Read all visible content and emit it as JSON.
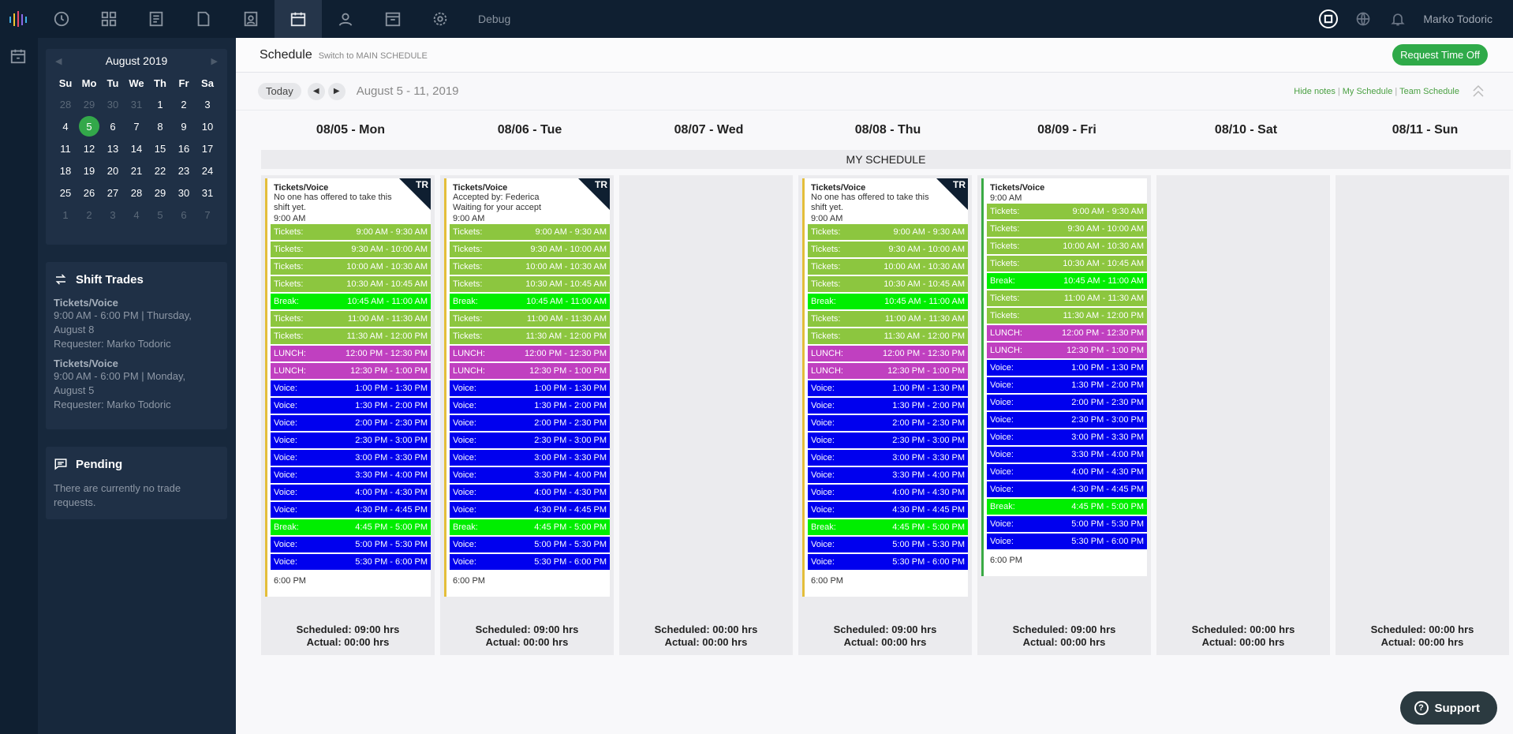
{
  "topbar": {
    "debug_label": "Debug",
    "username": "Marko Todoric",
    "nav_icons": [
      "dashboard-icon",
      "widgets-icon",
      "reports-icon",
      "files-icon",
      "contact-card-icon",
      "schedule-icon",
      "agents-icon",
      "archive-icon",
      "settings-icon"
    ],
    "active_icon": "schedule-icon"
  },
  "calendar": {
    "month_label": "August 2019",
    "weekdays": [
      "Su",
      "Mo",
      "Tu",
      "We",
      "Th",
      "Fr",
      "Sa"
    ],
    "days": [
      {
        "d": "28",
        "muted": true
      },
      {
        "d": "29",
        "muted": true
      },
      {
        "d": "30",
        "muted": true
      },
      {
        "d": "31",
        "muted": true
      },
      {
        "d": "1"
      },
      {
        "d": "2"
      },
      {
        "d": "3"
      },
      {
        "d": "4"
      },
      {
        "d": "5",
        "selected": true
      },
      {
        "d": "6"
      },
      {
        "d": "7"
      },
      {
        "d": "8"
      },
      {
        "d": "9"
      },
      {
        "d": "10"
      },
      {
        "d": "11"
      },
      {
        "d": "12"
      },
      {
        "d": "13"
      },
      {
        "d": "14"
      },
      {
        "d": "15"
      },
      {
        "d": "16"
      },
      {
        "d": "17"
      },
      {
        "d": "18"
      },
      {
        "d": "19"
      },
      {
        "d": "20"
      },
      {
        "d": "21"
      },
      {
        "d": "22"
      },
      {
        "d": "23"
      },
      {
        "d": "24"
      },
      {
        "d": "25"
      },
      {
        "d": "26"
      },
      {
        "d": "27"
      },
      {
        "d": "28"
      },
      {
        "d": "29"
      },
      {
        "d": "30"
      },
      {
        "d": "31"
      },
      {
        "d": "1",
        "muted": true
      },
      {
        "d": "2",
        "muted": true
      },
      {
        "d": "3",
        "muted": true
      },
      {
        "d": "4",
        "muted": true
      },
      {
        "d": "5",
        "muted": true
      },
      {
        "d": "6",
        "muted": true
      },
      {
        "d": "7",
        "muted": true
      }
    ]
  },
  "shift_trades": {
    "title": "Shift Trades",
    "items": [
      {
        "title": "Tickets/Voice",
        "line1": "9:00 AM - 6:00 PM | Thursday, August 8",
        "line2": "Requester: Marko Todoric"
      },
      {
        "title": "Tickets/Voice",
        "line1": "9:00 AM - 6:00 PM | Monday, August 5",
        "line2": "Requester: Marko Todoric"
      }
    ]
  },
  "pending": {
    "title": "Pending",
    "text": "There are currently no trade requests."
  },
  "schedule": {
    "title": "Schedule",
    "switch_link": "Switch to MAIN SCHEDULE",
    "request_button": "Request Time Off",
    "today_button": "Today",
    "range_label": "August 5 - 11, 2019",
    "links": {
      "hide_notes": "Hide notes",
      "my_schedule": "My Schedule",
      "team_schedule": "Team Schedule"
    },
    "section_label": "MY SCHEDULE",
    "colors": {
      "Tickets": "#8cc63f",
      "Break": "#00ee00",
      "LUNCH": "#c040c0",
      "Voice": "#0000ee"
    },
    "days": [
      {
        "header": "08/05 - Mon",
        "scheduled": "Scheduled: 09:00 hrs",
        "actual": "Actual: 00:00 hrs",
        "card": {
          "badge": "TR",
          "title": "Tickets/Voice",
          "notes": [
            "No one has offered to take this shift yet."
          ],
          "start": "9:00 AM",
          "end": "6:00 PM",
          "accent": "yellow",
          "blocks": [
            [
              "Tickets:",
              "9:00 AM - 9:30 AM"
            ],
            [
              "Tickets:",
              "9:30 AM - 10:00 AM"
            ],
            [
              "Tickets:",
              "10:00 AM - 10:30 AM"
            ],
            [
              "Tickets:",
              "10:30 AM - 10:45 AM"
            ],
            [
              "Break:",
              "10:45 AM - 11:00 AM"
            ],
            [
              "Tickets:",
              "11:00 AM - 11:30 AM"
            ],
            [
              "Tickets:",
              "11:30 AM - 12:00 PM"
            ],
            [
              "LUNCH:",
              "12:00 PM - 12:30 PM"
            ],
            [
              "LUNCH:",
              "12:30 PM - 1:00 PM"
            ],
            [
              "Voice:",
              "1:00 PM - 1:30 PM"
            ],
            [
              "Voice:",
              "1:30 PM - 2:00 PM"
            ],
            [
              "Voice:",
              "2:00 PM - 2:30 PM"
            ],
            [
              "Voice:",
              "2:30 PM - 3:00 PM"
            ],
            [
              "Voice:",
              "3:00 PM - 3:30 PM"
            ],
            [
              "Voice:",
              "3:30 PM - 4:00 PM"
            ],
            [
              "Voice:",
              "4:00 PM - 4:30 PM"
            ],
            [
              "Voice:",
              "4:30 PM - 4:45 PM"
            ],
            [
              "Break:",
              "4:45 PM - 5:00 PM"
            ],
            [
              "Voice:",
              "5:00 PM - 5:30 PM"
            ],
            [
              "Voice:",
              "5:30 PM - 6:00 PM"
            ]
          ]
        }
      },
      {
        "header": "08/06 - Tue",
        "scheduled": "Scheduled: 09:00 hrs",
        "actual": "Actual: 00:00 hrs",
        "card": {
          "badge": "TR",
          "title": "Tickets/Voice",
          "notes": [
            "Accepted by: Federica",
            "Waiting for your accept"
          ],
          "start": "9:00 AM",
          "end": "6:00 PM",
          "accent": "yellow",
          "blocks": [
            [
              "Tickets:",
              "9:00 AM - 9:30 AM"
            ],
            [
              "Tickets:",
              "9:30 AM - 10:00 AM"
            ],
            [
              "Tickets:",
              "10:00 AM - 10:30 AM"
            ],
            [
              "Tickets:",
              "10:30 AM - 10:45 AM"
            ],
            [
              "Break:",
              "10:45 AM - 11:00 AM"
            ],
            [
              "Tickets:",
              "11:00 AM - 11:30 AM"
            ],
            [
              "Tickets:",
              "11:30 AM - 12:00 PM"
            ],
            [
              "LUNCH:",
              "12:00 PM - 12:30 PM"
            ],
            [
              "LUNCH:",
              "12:30 PM - 1:00 PM"
            ],
            [
              "Voice:",
              "1:00 PM - 1:30 PM"
            ],
            [
              "Voice:",
              "1:30 PM - 2:00 PM"
            ],
            [
              "Voice:",
              "2:00 PM - 2:30 PM"
            ],
            [
              "Voice:",
              "2:30 PM - 3:00 PM"
            ],
            [
              "Voice:",
              "3:00 PM - 3:30 PM"
            ],
            [
              "Voice:",
              "3:30 PM - 4:00 PM"
            ],
            [
              "Voice:",
              "4:00 PM - 4:30 PM"
            ],
            [
              "Voice:",
              "4:30 PM - 4:45 PM"
            ],
            [
              "Break:",
              "4:45 PM - 5:00 PM"
            ],
            [
              "Voice:",
              "5:00 PM - 5:30 PM"
            ],
            [
              "Voice:",
              "5:30 PM - 6:00 PM"
            ]
          ]
        }
      },
      {
        "header": "08/07 - Wed",
        "scheduled": "Scheduled: 00:00 hrs",
        "actual": "Actual: 00:00 hrs",
        "card": null
      },
      {
        "header": "08/08 - Thu",
        "scheduled": "Scheduled: 09:00 hrs",
        "actual": "Actual: 00:00 hrs",
        "card": {
          "badge": "TR",
          "title": "Tickets/Voice",
          "notes": [
            "No one has offered to take this shift yet."
          ],
          "start": "9:00 AM",
          "end": "6:00 PM",
          "accent": "yellow",
          "blocks": [
            [
              "Tickets:",
              "9:00 AM - 9:30 AM"
            ],
            [
              "Tickets:",
              "9:30 AM - 10:00 AM"
            ],
            [
              "Tickets:",
              "10:00 AM - 10:30 AM"
            ],
            [
              "Tickets:",
              "10:30 AM - 10:45 AM"
            ],
            [
              "Break:",
              "10:45 AM - 11:00 AM"
            ],
            [
              "Tickets:",
              "11:00 AM - 11:30 AM"
            ],
            [
              "Tickets:",
              "11:30 AM - 12:00 PM"
            ],
            [
              "LUNCH:",
              "12:00 PM - 12:30 PM"
            ],
            [
              "LUNCH:",
              "12:30 PM - 1:00 PM"
            ],
            [
              "Voice:",
              "1:00 PM - 1:30 PM"
            ],
            [
              "Voice:",
              "1:30 PM - 2:00 PM"
            ],
            [
              "Voice:",
              "2:00 PM - 2:30 PM"
            ],
            [
              "Voice:",
              "2:30 PM - 3:00 PM"
            ],
            [
              "Voice:",
              "3:00 PM - 3:30 PM"
            ],
            [
              "Voice:",
              "3:30 PM - 4:00 PM"
            ],
            [
              "Voice:",
              "4:00 PM - 4:30 PM"
            ],
            [
              "Voice:",
              "4:30 PM - 4:45 PM"
            ],
            [
              "Break:",
              "4:45 PM - 5:00 PM"
            ],
            [
              "Voice:",
              "5:00 PM - 5:30 PM"
            ],
            [
              "Voice:",
              "5:30 PM - 6:00 PM"
            ]
          ]
        }
      },
      {
        "header": "08/09 - Fri",
        "scheduled": "Scheduled: 09:00 hrs",
        "actual": "Actual: 00:00 hrs",
        "card": {
          "badge": "",
          "title": "Tickets/Voice",
          "notes": [],
          "start": "9:00 AM",
          "end": "6:00 PM",
          "accent": "green",
          "blocks": [
            [
              "Tickets:",
              "9:00 AM - 9:30 AM"
            ],
            [
              "Tickets:",
              "9:30 AM - 10:00 AM"
            ],
            [
              "Tickets:",
              "10:00 AM - 10:30 AM"
            ],
            [
              "Tickets:",
              "10:30 AM - 10:45 AM"
            ],
            [
              "Break:",
              "10:45 AM - 11:00 AM"
            ],
            [
              "Tickets:",
              "11:00 AM - 11:30 AM"
            ],
            [
              "Tickets:",
              "11:30 AM - 12:00 PM"
            ],
            [
              "LUNCH:",
              "12:00 PM - 12:30 PM"
            ],
            [
              "LUNCH:",
              "12:30 PM - 1:00 PM"
            ],
            [
              "Voice:",
              "1:00 PM - 1:30 PM"
            ],
            [
              "Voice:",
              "1:30 PM - 2:00 PM"
            ],
            [
              "Voice:",
              "2:00 PM - 2:30 PM"
            ],
            [
              "Voice:",
              "2:30 PM - 3:00 PM"
            ],
            [
              "Voice:",
              "3:00 PM - 3:30 PM"
            ],
            [
              "Voice:",
              "3:30 PM - 4:00 PM"
            ],
            [
              "Voice:",
              "4:00 PM - 4:30 PM"
            ],
            [
              "Voice:",
              "4:30 PM - 4:45 PM"
            ],
            [
              "Break:",
              "4:45 PM - 5:00 PM"
            ],
            [
              "Voice:",
              "5:00 PM - 5:30 PM"
            ],
            [
              "Voice:",
              "5:30 PM - 6:00 PM"
            ]
          ]
        }
      },
      {
        "header": "08/10 - Sat",
        "scheduled": "Scheduled: 00:00 hrs",
        "actual": "Actual: 00:00 hrs",
        "card": null
      },
      {
        "header": "08/11 - Sun",
        "scheduled": "Scheduled: 00:00 hrs",
        "actual": "Actual: 00:00 hrs",
        "card": null
      }
    ]
  },
  "support_button": "Support"
}
